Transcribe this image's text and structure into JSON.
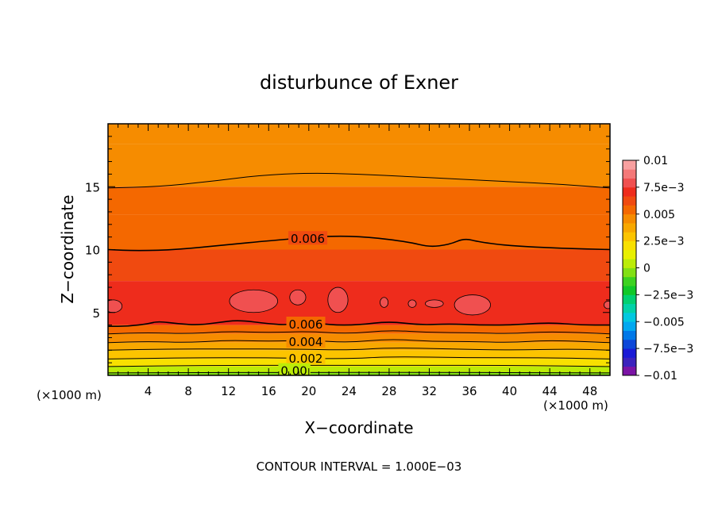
{
  "chart_data": {
    "type": "heatmap",
    "title": "disturbunce of Exner",
    "xlabel": "X−coordinate",
    "ylabel": "Z−coordinate",
    "x_unit_left": "(×1000 m)",
    "x_unit_right": "(×1000 m)",
    "footer": "CONTOUR INTERVAL = 1.000E−03",
    "xlim": [
      0,
      50
    ],
    "ylim": [
      0,
      20
    ],
    "x_ticks": [
      4,
      8,
      12,
      16,
      20,
      24,
      28,
      32,
      36,
      40,
      44,
      48
    ],
    "y_ticks": [
      5,
      10,
      15
    ],
    "contour_interval": 0.001,
    "contour_labels": [
      {
        "text": "0.006",
        "x": 18.2,
        "z": 10.9
      },
      {
        "text": "0.006",
        "x": 18.0,
        "z": 4.1
      },
      {
        "text": "0.004",
        "x": 18.0,
        "z": 2.7
      },
      {
        "text": "0.002",
        "x": 18.0,
        "z": 1.4
      },
      {
        "text": "0.00",
        "x": 17.2,
        "z": 0.4
      }
    ],
    "contour_lines": [
      {
        "level": 0.005,
        "points": [
          [
            0,
            14.9
          ],
          [
            5,
            15.0
          ],
          [
            10,
            15.4
          ],
          [
            15,
            15.9
          ],
          [
            20,
            16.1
          ],
          [
            25,
            16.0
          ],
          [
            30,
            15.8
          ],
          [
            35,
            15.6
          ],
          [
            40,
            15.4
          ],
          [
            45,
            15.2
          ],
          [
            50,
            14.9
          ]
        ]
      },
      {
        "level": 0.006,
        "points": [
          [
            0,
            10.0
          ],
          [
            3,
            9.9
          ],
          [
            7,
            10.0
          ],
          [
            12,
            10.4
          ],
          [
            16,
            10.7
          ],
          [
            22,
            11.1
          ],
          [
            26,
            11.0
          ],
          [
            30,
            10.6
          ],
          [
            32,
            10.2
          ],
          [
            34,
            10.4
          ],
          [
            35.5,
            10.9
          ],
          [
            37,
            10.6
          ],
          [
            40,
            10.3
          ],
          [
            45,
            10.1
          ],
          [
            50,
            10.0
          ]
        ]
      },
      {
        "level": 0.006,
        "points": [
          [
            0,
            3.9
          ],
          [
            2,
            3.9
          ],
          [
            4,
            4.1
          ],
          [
            5,
            4.3
          ],
          [
            7,
            4.1
          ],
          [
            9,
            4.0
          ],
          [
            11,
            4.2
          ],
          [
            13,
            4.4
          ],
          [
            16,
            4.1
          ],
          [
            18,
            4.0
          ],
          [
            20,
            4.3
          ],
          [
            22,
            4.0
          ],
          [
            25,
            4.0
          ],
          [
            28,
            4.3
          ],
          [
            31,
            4.0
          ],
          [
            34,
            4.1
          ],
          [
            37,
            4.0
          ],
          [
            40,
            4.0
          ],
          [
            44,
            4.2
          ],
          [
            47,
            4.0
          ],
          [
            50,
            4.0
          ]
        ]
      },
      {
        "level": 0.005,
        "points": [
          [
            0,
            3.3
          ],
          [
            4,
            3.4
          ],
          [
            8,
            3.3
          ],
          [
            12,
            3.5
          ],
          [
            16,
            3.4
          ],
          [
            20,
            3.5
          ],
          [
            24,
            3.3
          ],
          [
            28,
            3.6
          ],
          [
            32,
            3.4
          ],
          [
            36,
            3.4
          ],
          [
            40,
            3.3
          ],
          [
            44,
            3.5
          ],
          [
            50,
            3.3
          ]
        ]
      },
      {
        "level": 0.004,
        "points": [
          [
            0,
            2.6
          ],
          [
            4,
            2.7
          ],
          [
            8,
            2.6
          ],
          [
            12,
            2.8
          ],
          [
            16,
            2.7
          ],
          [
            20,
            2.8
          ],
          [
            24,
            2.6
          ],
          [
            28,
            2.9
          ],
          [
            32,
            2.7
          ],
          [
            36,
            2.7
          ],
          [
            40,
            2.6
          ],
          [
            44,
            2.8
          ],
          [
            50,
            2.6
          ]
        ]
      },
      {
        "level": 0.003,
        "points": [
          [
            0,
            2.0
          ],
          [
            6,
            2.1
          ],
          [
            12,
            2.1
          ],
          [
            18,
            2.1
          ],
          [
            24,
            2.0
          ],
          [
            28,
            2.2
          ],
          [
            34,
            2.1
          ],
          [
            40,
            2.0
          ],
          [
            46,
            2.1
          ],
          [
            50,
            2.0
          ]
        ]
      },
      {
        "level": 0.002,
        "points": [
          [
            0,
            1.3
          ],
          [
            8,
            1.4
          ],
          [
            16,
            1.4
          ],
          [
            24,
            1.3
          ],
          [
            28,
            1.5
          ],
          [
            36,
            1.4
          ],
          [
            44,
            1.4
          ],
          [
            50,
            1.3
          ]
        ]
      },
      {
        "level": 0.001,
        "points": [
          [
            0,
            0.7
          ],
          [
            10,
            0.8
          ],
          [
            20,
            0.8
          ],
          [
            30,
            0.8
          ],
          [
            40,
            0.8
          ],
          [
            50,
            0.7
          ]
        ]
      },
      {
        "level": 0.0,
        "points": [
          [
            0,
            0.2
          ],
          [
            25,
            0.25
          ],
          [
            50,
            0.2
          ]
        ]
      }
    ],
    "field_bands": [
      {
        "z_bottom": 18.4,
        "z_top": 20,
        "value": 0.0048
      },
      {
        "z_bottom": 15.0,
        "z_top": 18.4,
        "value": 0.0046
      },
      {
        "z_bottom": 12.8,
        "z_top": 15.0,
        "value": 0.0053
      },
      {
        "z_bottom": 10.0,
        "z_top": 12.8,
        "value": 0.0058
      },
      {
        "z_bottom": 7.5,
        "z_top": 10.0,
        "value": 0.0063
      },
      {
        "z_bottom": 4.0,
        "z_top": 7.5,
        "value": 0.0068
      },
      {
        "z_bottom": 3.3,
        "z_top": 4.0,
        "value": 0.0058
      },
      {
        "z_bottom": 2.6,
        "z_top": 3.3,
        "value": 0.0048
      },
      {
        "z_bottom": 2.0,
        "z_top": 2.6,
        "value": 0.0038
      },
      {
        "z_bottom": 1.3,
        "z_top": 2.0,
        "value": 0.0028
      },
      {
        "z_bottom": 0.7,
        "z_top": 1.3,
        "value": 0.0018
      },
      {
        "z_bottom": 0.2,
        "z_top": 0.7,
        "value": 0.0008
      },
      {
        "z_bottom": 0.0,
        "z_top": 0.2,
        "value": -0.0001
      }
    ],
    "maxima_patches": [
      {
        "x": 0.5,
        "z": 5.5,
        "rx": 0.9,
        "rz": 0.5
      },
      {
        "x": 14.5,
        "z": 5.9,
        "rx": 2.4,
        "rz": 0.9
      },
      {
        "x": 18.9,
        "z": 6.2,
        "rx": 0.8,
        "rz": 0.6
      },
      {
        "x": 22.9,
        "z": 6.0,
        "rx": 1.0,
        "rz": 1.0
      },
      {
        "x": 27.5,
        "z": 5.8,
        "rx": 0.4,
        "rz": 0.4
      },
      {
        "x": 30.3,
        "z": 5.7,
        "rx": 0.4,
        "rz": 0.3
      },
      {
        "x": 32.5,
        "z": 5.7,
        "rx": 0.9,
        "rz": 0.3
      },
      {
        "x": 36.3,
        "z": 5.6,
        "rx": 1.8,
        "rz": 0.8
      },
      {
        "x": 49.8,
        "z": 5.6,
        "rx": 0.4,
        "rz": 0.3
      }
    ],
    "colorbar": {
      "vmin": -0.01,
      "vmax": 0.01,
      "tick_labels": [
        "0.01",
        "7.5e−3",
        "0.005",
        "2.5e−3",
        "0",
        "−2.5e−3",
        "−0.005",
        "−7.5e−3",
        "−0.01"
      ],
      "tick_values": [
        0.01,
        0.0075,
        0.005,
        0.0025,
        0,
        -0.0025,
        -0.005,
        -0.0075,
        -0.01
      ],
      "colors": [
        "#7b13a5",
        "#3b22bd",
        "#1a1ad6",
        "#0d47d9",
        "#0078e8",
        "#00a8f0",
        "#00c8e0",
        "#00d2a8",
        "#00d070",
        "#10c828",
        "#3cd220",
        "#82e014",
        "#bcec08",
        "#e8f000",
        "#f8e000",
        "#fcc400",
        "#f8a800",
        "#f68c00",
        "#f46800",
        "#f04a10",
        "#ee2c1c",
        "#f05050",
        "#f47878",
        "#f8a0a0"
      ]
    }
  }
}
